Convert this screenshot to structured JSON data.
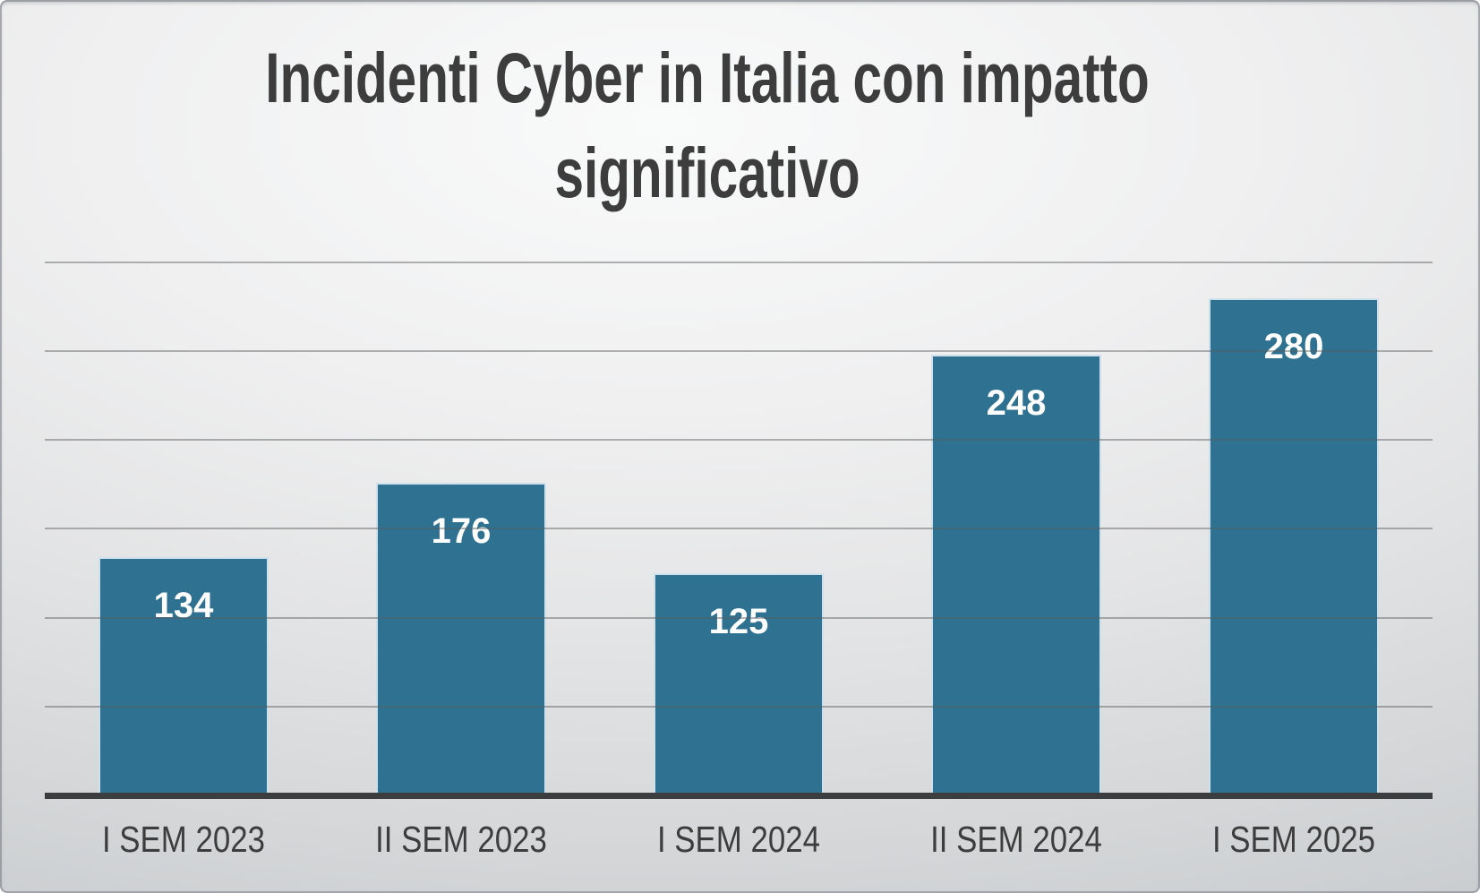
{
  "title": {
    "line1": "Incidenti Cyber in Italia con impatto",
    "line2": "significativo"
  },
  "colors": {
    "bar_fill": "#2F7190",
    "bar_border": "#CDE0EB",
    "axis_line": "#3B3D3F",
    "gridline": "rgba(88,90,92,0.45)",
    "title_text": "#3D3D3D",
    "axis_label_text": "#3D3D3D",
    "data_label_text": "#FFFFFF",
    "background_light": "#F9FAFA",
    "background_dark": "#C5C8CB"
  },
  "chart_data": {
    "type": "bar",
    "title": "Incidenti Cyber in Italia con impatto significativo",
    "categories": [
      "I SEM 2023",
      "II SEM 2023",
      "I SEM 2024",
      "II SEM 2024",
      "I SEM 2025"
    ],
    "values": [
      134,
      176,
      125,
      248,
      280
    ],
    "xlabel": "",
    "ylabel": "",
    "ylim": [
      0,
      300
    ],
    "gridline_step": 50,
    "grid": true,
    "legend": false,
    "data_labels": "inside-top",
    "y_axis_tick_labels_visible": false
  }
}
